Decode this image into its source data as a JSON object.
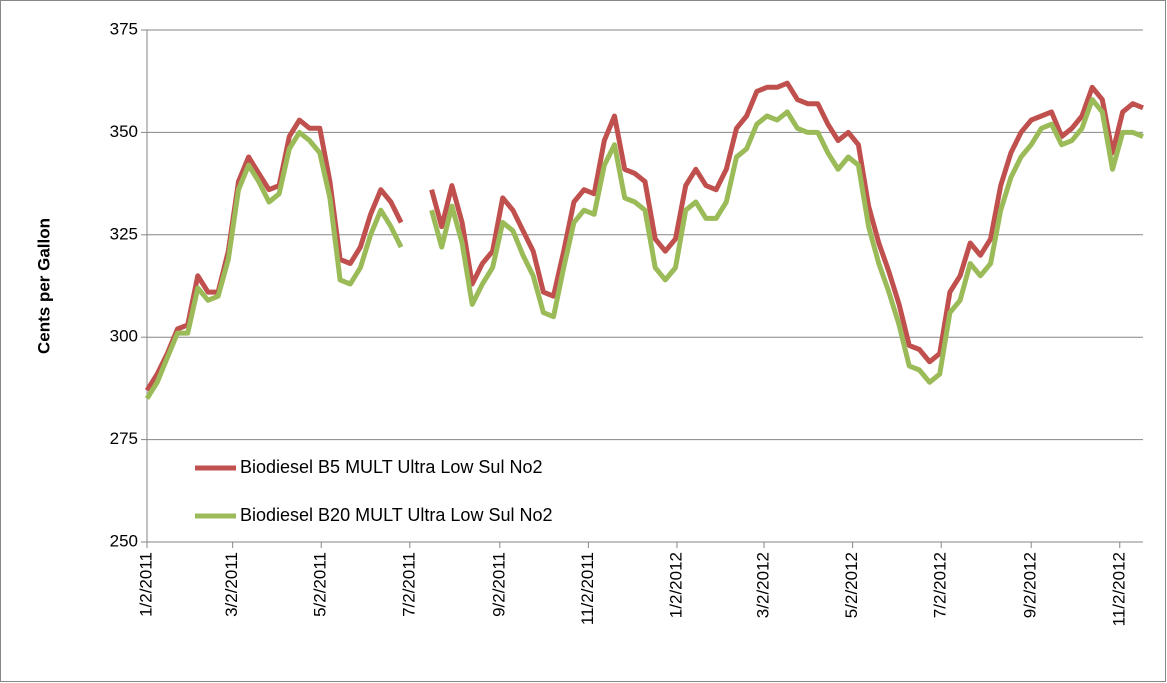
{
  "chart_data": {
    "type": "line",
    "y_label": "Cents per Gallon",
    "x": [
      "1/2/2011",
      "1/9/2011",
      "1/16/2011",
      "1/23/2011",
      "1/30/2011",
      "2/6/2011",
      "2/13/2011",
      "2/20/2011",
      "2/27/2011",
      "3/6/2011",
      "3/13/2011",
      "3/20/2011",
      "3/27/2011",
      "4/3/2011",
      "4/10/2011",
      "4/17/2011",
      "4/24/2011",
      "5/1/2011",
      "5/8/2011",
      "5/15/2011",
      "5/22/2011",
      "5/29/2011",
      "6/5/2011",
      "6/12/2011",
      "6/19/2011",
      "6/26/2011",
      "7/3/2011",
      "7/10/2011",
      "7/17/2011",
      "7/24/2011",
      "7/31/2011",
      "8/7/2011",
      "8/14/2011",
      "8/21/2011",
      "8/28/2011",
      "9/4/2011",
      "9/11/2011",
      "9/18/2011",
      "9/25/2011",
      "10/2/2011",
      "10/9/2011",
      "10/16/2011",
      "10/23/2011",
      "10/30/2011",
      "11/6/2011",
      "11/13/2011",
      "11/20/2011",
      "11/27/2011",
      "12/4/2011",
      "12/11/2011",
      "12/18/2011",
      "12/25/2011",
      "1/1/2012",
      "1/8/2012",
      "1/15/2012",
      "1/22/2012",
      "1/29/2012",
      "2/5/2012",
      "2/12/2012",
      "2/19/2012",
      "2/26/2012",
      "3/4/2012",
      "3/11/2012",
      "3/18/2012",
      "3/25/2012",
      "4/1/2012",
      "4/8/2012",
      "4/15/2012",
      "4/22/2012",
      "4/29/2012",
      "5/6/2012",
      "5/13/2012",
      "5/20/2012",
      "5/27/2012",
      "6/3/2012",
      "6/10/2012",
      "6/17/2012",
      "6/24/2012",
      "7/1/2012",
      "7/8/2012",
      "7/15/2012",
      "7/22/2012",
      "7/29/2012",
      "8/5/2012",
      "8/12/2012",
      "8/19/2012",
      "8/26/2012",
      "9/2/2012",
      "9/9/2012",
      "9/16/2012",
      "9/23/2012",
      "9/30/2012",
      "10/7/2012",
      "10/14/2012",
      "10/21/2012",
      "10/28/2012",
      "11/4/2012",
      "11/11/2012",
      "11/18/2012"
    ],
    "series": [
      {
        "name": "Biodiesel B5 MULT Ultra Low Sul No2",
        "color": "#c0504d",
        "values": [
          287,
          291,
          296,
          302,
          303,
          315,
          311,
          311,
          321,
          338,
          344,
          340,
          336,
          337,
          349,
          353,
          351,
          351,
          338,
          319,
          318,
          322,
          330,
          336,
          333,
          328,
          null,
          null,
          336,
          327,
          337,
          328,
          313,
          318,
          321,
          334,
          331,
          326,
          321,
          311,
          310,
          321,
          333,
          336,
          335,
          348,
          354,
          341,
          340,
          338,
          324,
          321,
          324,
          337,
          341,
          337,
          336,
          341,
          351,
          354,
          360,
          361,
          361,
          362,
          358,
          357,
          357,
          352,
          348,
          350,
          347,
          332,
          323,
          316,
          308,
          298,
          297,
          294,
          296,
          311,
          315,
          323,
          320,
          324,
          337,
          345,
          350,
          353,
          354,
          355,
          349,
          351,
          354,
          361,
          358,
          345,
          355,
          357,
          356
        ]
      },
      {
        "name": "Biodiesel B20 MULT Ultra Low Sul No2",
        "color": "#9bbb59",
        "values": [
          285,
          289,
          295,
          301,
          301,
          312,
          309,
          310,
          319,
          336,
          342,
          338,
          333,
          335,
          346,
          350,
          348,
          345,
          334,
          314,
          313,
          317,
          325,
          331,
          327,
          322,
          null,
          null,
          331,
          322,
          332,
          323,
          308,
          313,
          317,
          328,
          326,
          320,
          315,
          306,
          305,
          317,
          328,
          331,
          330,
          342,
          347,
          334,
          333,
          331,
          317,
          314,
          317,
          331,
          333,
          329,
          329,
          333,
          344,
          346,
          352,
          354,
          353,
          355,
          351,
          350,
          350,
          345,
          341,
          344,
          342,
          327,
          318,
          311,
          303,
          293,
          292,
          289,
          291,
          306,
          309,
          318,
          315,
          318,
          331,
          339,
          344,
          347,
          351,
          352,
          347,
          348,
          351,
          358,
          355,
          341,
          350,
          350,
          349
        ]
      }
    ],
    "xlim": [
      "1/2/2011",
      "11/18/2012"
    ],
    "xticks": [
      "1/2/2011",
      "3/2/2011",
      "5/2/2011",
      "7/2/2011",
      "9/2/2011",
      "11/2/2011",
      "1/2/2012",
      "3/2/2012",
      "5/2/2012",
      "7/2/2012",
      "9/2/2012",
      "11/2/2012"
    ],
    "ylim": [
      250,
      375
    ],
    "yticks": [
      250,
      275,
      300,
      325,
      350,
      375
    ],
    "grid": true
  }
}
